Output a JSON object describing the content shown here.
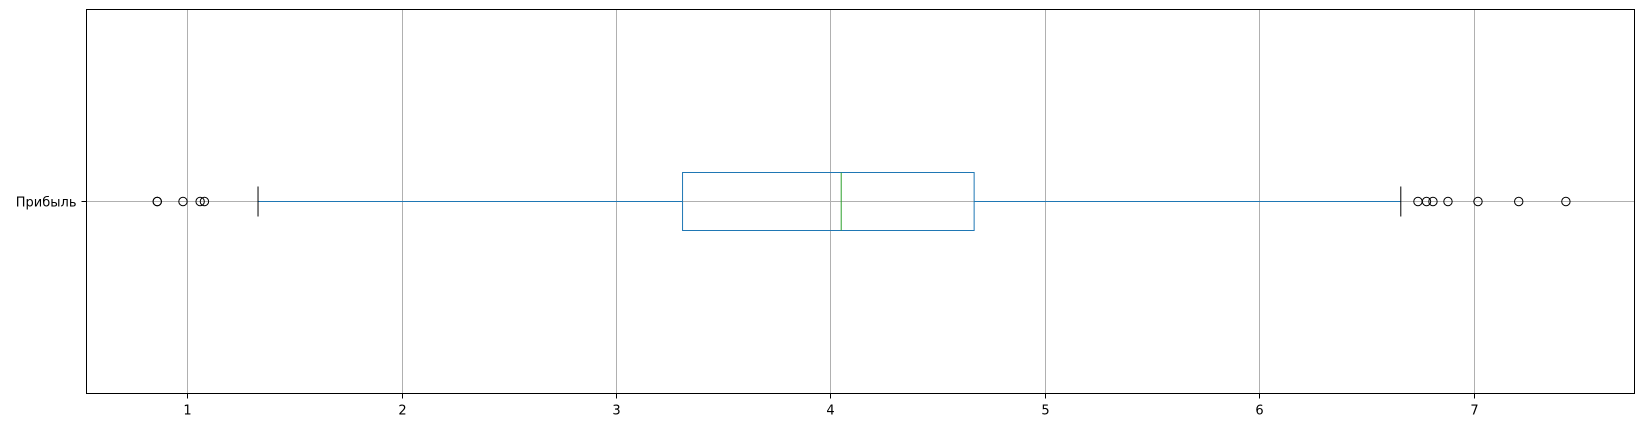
{
  "chart_data": {
    "type": "boxplot",
    "orientation": "horizontal",
    "title": "",
    "xlabel": "",
    "ylabel": "",
    "categories": [
      "Прибыль"
    ],
    "xlim": [
      0.53,
      7.75
    ],
    "xticks": [
      1,
      2,
      3,
      4,
      5,
      6,
      7
    ],
    "grid": true,
    "boxes": [
      {
        "label": "Прибыль",
        "whisker_low": 1.33,
        "q1": 3.31,
        "median": 4.05,
        "q3": 4.67,
        "whisker_high": 6.66,
        "outliers": [
          0.86,
          0.86,
          0.98,
          1.06,
          1.08,
          6.74,
          6.78,
          6.81,
          6.88,
          7.02,
          7.21,
          7.43
        ]
      }
    ],
    "colors": {
      "box": "#1f77b4",
      "median": "#2ca02c",
      "caps": "#000000",
      "grid": "#b0b0b0",
      "axes": "#000000"
    }
  }
}
